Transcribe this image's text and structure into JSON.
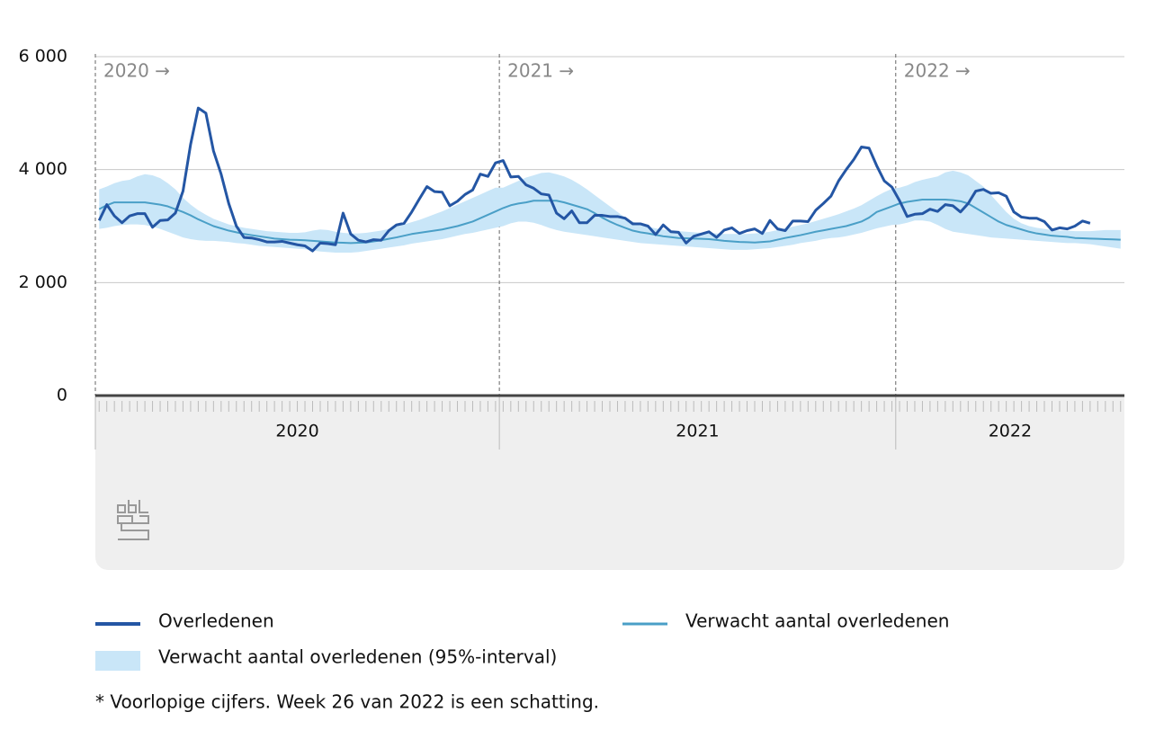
{
  "chart_data": {
    "type": "line",
    "ylim": [
      0,
      6000
    ],
    "yticks": [
      0,
      {
        "value": 2000,
        "label": "2 000"
      },
      {
        "value": 4000,
        "label": "4 000"
      },
      {
        "value": 6000,
        "label": "6 000"
      }
    ],
    "grid": true,
    "periods": [
      {
        "label": "2020",
        "marker_label": "2020 →",
        "weeks": 53
      },
      {
        "label": "2021",
        "marker_label": "2021 →",
        "weeks": 52
      },
      {
        "label": "2022",
        "marker_label": "2022 →",
        "weeks": 30
      }
    ],
    "band": {
      "name": "Verwacht aantal overledenen (95%-interval)",
      "color": "#c9e6f8",
      "upper": [
        3650,
        3700,
        3760,
        3800,
        3820,
        3880,
        3920,
        3900,
        3850,
        3760,
        3650,
        3500,
        3380,
        3280,
        3200,
        3130,
        3080,
        3030,
        3000,
        2970,
        2950,
        2930,
        2910,
        2900,
        2890,
        2880,
        2880,
        2890,
        2920,
        2940,
        2930,
        2900,
        2880,
        2870,
        2870,
        2880,
        2900,
        2920,
        2950,
        2990,
        3030,
        3070,
        3110,
        3160,
        3210,
        3260,
        3320,
        3380,
        3440,
        3500,
        3560,
        3620,
        3680,
        3680,
        3740,
        3800,
        3860,
        3900,
        3940,
        3950,
        3920,
        3880,
        3820,
        3740,
        3650,
        3550,
        3450,
        3350,
        3250,
        3150,
        3080,
        3030,
        2990,
        2960,
        2940,
        2920,
        2910,
        2900,
        2890,
        2880,
        2880,
        2870,
        2860,
        2860,
        2860,
        2860,
        2870,
        2880,
        2900,
        2930,
        2960,
        2990,
        3020,
        3050,
        3090,
        3130,
        3170,
        3210,
        3260,
        3310,
        3370,
        3450,
        3530,
        3600,
        3660,
        3680,
        3720,
        3780,
        3820,
        3850,
        3880,
        3950,
        3980,
        3950,
        3900,
        3800,
        3700,
        3550,
        3400,
        3250,
        3130,
        3050,
        3000,
        2970,
        2950,
        2930,
        2920,
        2920,
        2910,
        2910,
        2910,
        2920,
        2930,
        2930,
        2930
      ],
      "lower": [
        2950,
        2970,
        3000,
        3020,
        3030,
        3030,
        3020,
        2990,
        2950,
        2900,
        2850,
        2800,
        2770,
        2750,
        2740,
        2740,
        2730,
        2720,
        2700,
        2690,
        2670,
        2650,
        2640,
        2630,
        2620,
        2610,
        2600,
        2590,
        2570,
        2550,
        2540,
        2530,
        2530,
        2530,
        2540,
        2560,
        2580,
        2600,
        2620,
        2640,
        2660,
        2690,
        2710,
        2730,
        2750,
        2770,
        2800,
        2830,
        2860,
        2880,
        2910,
        2940,
        2970,
        3000,
        3050,
        3080,
        3080,
        3060,
        3020,
        2970,
        2930,
        2900,
        2880,
        2860,
        2840,
        2820,
        2800,
        2780,
        2760,
        2740,
        2720,
        2700,
        2690,
        2680,
        2670,
        2660,
        2650,
        2640,
        2630,
        2620,
        2610,
        2600,
        2590,
        2580,
        2580,
        2580,
        2590,
        2600,
        2610,
        2630,
        2650,
        2670,
        2700,
        2720,
        2740,
        2770,
        2790,
        2800,
        2820,
        2850,
        2880,
        2920,
        2960,
        2990,
        3020,
        3030,
        3060,
        3100,
        3100,
        3080,
        3020,
        2950,
        2900,
        2880,
        2860,
        2840,
        2820,
        2800,
        2790,
        2780,
        2770,
        2760,
        2750,
        2740,
        2730,
        2720,
        2710,
        2700,
        2700,
        2690,
        2680,
        2660,
        2640,
        2620,
        2600
      ]
    },
    "series": [
      {
        "name": "Overledenen",
        "color": "#2456a4",
        "width": 3,
        "values": [
          3100,
          3380,
          3180,
          3060,
          3180,
          3220,
          3220,
          2980,
          3100,
          3110,
          3230,
          3620,
          4450,
          5090,
          5000,
          4330,
          3920,
          3400,
          3000,
          2800,
          2790,
          2760,
          2720,
          2720,
          2730,
          2700,
          2670,
          2650,
          2560,
          2700,
          2690,
          2670,
          3230,
          2860,
          2750,
          2720,
          2760,
          2750,
          2920,
          3020,
          3050,
          3250,
          3480,
          3700,
          3610,
          3600,
          3360,
          3440,
          3560,
          3640,
          3920,
          3880,
          4120,
          4160,
          3870,
          3880,
          3730,
          3670,
          3570,
          3550,
          3230,
          3130,
          3270,
          3060,
          3060,
          3190,
          3190,
          3170,
          3170,
          3140,
          3040,
          3040,
          3000,
          2850,
          3020,
          2900,
          2890,
          2700,
          2820,
          2860,
          2900,
          2800,
          2930,
          2970,
          2870,
          2920,
          2950,
          2870,
          3100,
          2950,
          2920,
          3090,
          3090,
          3080,
          3280,
          3400,
          3530,
          3800,
          4000,
          4180,
          4400,
          4380,
          4070,
          3800,
          3690,
          3450,
          3170,
          3210,
          3220,
          3300,
          3260,
          3380,
          3360,
          3250,
          3400,
          3620,
          3650,
          3580,
          3590,
          3530,
          3250,
          3160,
          3140,
          3140,
          3080,
          2930,
          2970,
          2950,
          3000,
          3090,
          3050,
          null,
          null,
          null,
          null
        ]
      },
      {
        "name": "Verwacht aantal overledenen",
        "color": "#4a9fc7",
        "width": 2,
        "values": [
          3300,
          3370,
          3420,
          3420,
          3420,
          3420,
          3420,
          3400,
          3380,
          3350,
          3300,
          3250,
          3190,
          3120,
          3060,
          3000,
          2960,
          2920,
          2890,
          2860,
          2840,
          2820,
          2800,
          2780,
          2770,
          2760,
          2755,
          2750,
          2740,
          2730,
          2720,
          2710,
          2705,
          2700,
          2705,
          2710,
          2730,
          2750,
          2775,
          2800,
          2830,
          2860,
          2880,
          2900,
          2920,
          2940,
          2970,
          3000,
          3040,
          3080,
          3140,
          3200,
          3260,
          3320,
          3370,
          3400,
          3420,
          3450,
          3450,
          3450,
          3450,
          3420,
          3380,
          3340,
          3300,
          3230,
          3150,
          3080,
          3020,
          2970,
          2920,
          2890,
          2870,
          2845,
          2820,
          2805,
          2790,
          2785,
          2780,
          2775,
          2770,
          2755,
          2740,
          2730,
          2720,
          2715,
          2710,
          2720,
          2730,
          2760,
          2790,
          2815,
          2840,
          2870,
          2900,
          2925,
          2950,
          2975,
          3000,
          3040,
          3080,
          3150,
          3250,
          3300,
          3350,
          3400,
          3430,
          3450,
          3470,
          3470,
          3470,
          3470,
          3460,
          3440,
          3400,
          3320,
          3240,
          3160,
          3080,
          3020,
          2980,
          2940,
          2900,
          2870,
          2850,
          2830,
          2820,
          2810,
          2790,
          2785,
          2780,
          2775,
          2770,
          2765,
          2760
        ]
      }
    ],
    "footnote": "* Voorlopige cijfers. Week 26 van 2022 is een schatting."
  }
}
